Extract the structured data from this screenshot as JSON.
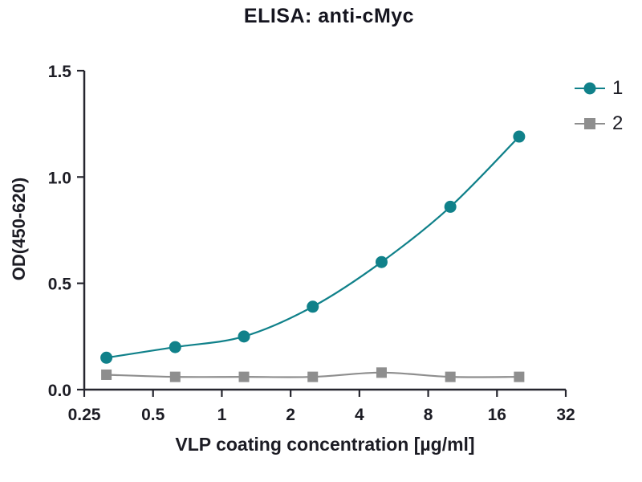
{
  "page": {
    "background": "#ffffff"
  },
  "chart_data": {
    "type": "line",
    "title": "ELISA: anti-cMyc",
    "xlabel": "VLP coating concentration [µg/ml]",
    "ylabel": "OD(450-620)",
    "x_scale": "log2",
    "xlim": [
      0.25,
      32
    ],
    "ylim": [
      0,
      1.5
    ],
    "x_ticks": [
      0.25,
      0.5,
      1,
      2,
      4,
      8,
      16,
      32
    ],
    "x_tick_labels": [
      "0.25",
      "0.5",
      "1",
      "2",
      "4",
      "8",
      "16",
      "32"
    ],
    "y_ticks": [
      0,
      0.5,
      1.0,
      1.5
    ],
    "y_tick_labels": [
      "0.0",
      "0.5",
      "1.0",
      "1.5"
    ],
    "grid": false,
    "legend_position": "top-right",
    "x": [
      0.3125,
      0.625,
      1.25,
      2.5,
      5,
      10,
      20
    ],
    "series": [
      {
        "name": "1",
        "marker": "circle",
        "color": "#10818a",
        "values": [
          0.15,
          0.2,
          0.25,
          0.39,
          0.6,
          0.86,
          1.19
        ]
      },
      {
        "name": "2",
        "marker": "square",
        "color": "#8e8e8e",
        "values": [
          0.07,
          0.06,
          0.06,
          0.06,
          0.08,
          0.06,
          0.06
        ]
      }
    ],
    "axis_color": "#25252e",
    "text_color": "#1c1c24"
  }
}
